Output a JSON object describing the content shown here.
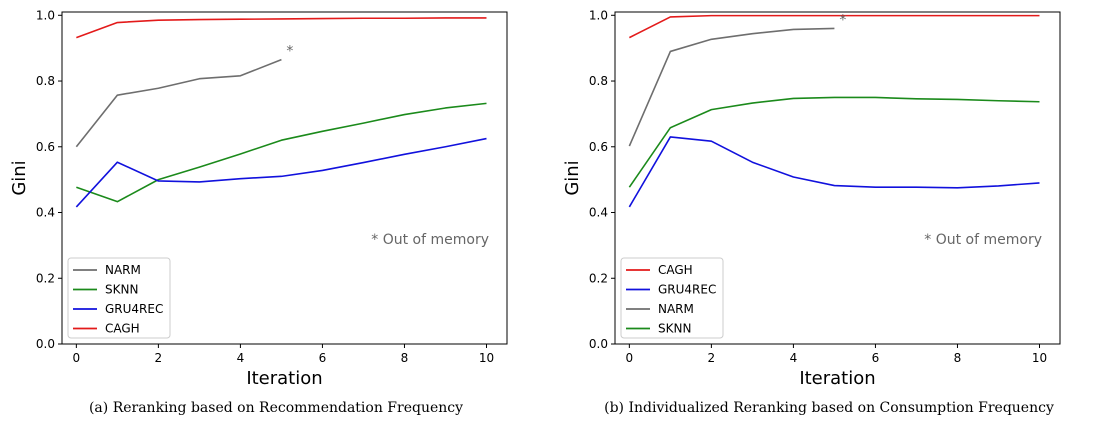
{
  "chart_data": [
    {
      "type": "line",
      "caption": "(a) Reranking based on Recommendation Frequency",
      "xlabel": "Iteration",
      "ylabel": "Gini",
      "xlim": [
        -0.35,
        10.5
      ],
      "ylim": [
        0.0,
        1.01
      ],
      "xticks": [
        0,
        2,
        4,
        6,
        8,
        10
      ],
      "xtick_labels": [
        "0",
        "2",
        "4",
        "6",
        "8",
        "10"
      ],
      "yticks": [
        0.0,
        0.2,
        0.4,
        0.6,
        0.8,
        1.0
      ],
      "ytick_labels": [
        "0.0",
        "0.2",
        "0.4",
        "0.6",
        "0.8",
        "1.0"
      ],
      "grid": false,
      "legend_position": "bottom-left",
      "note": "* Out of memory",
      "marker_label": "*",
      "marker_series": "NARM",
      "series": [
        {
          "name": "NARM",
          "color": "#6e6e6e",
          "x": [
            0,
            1,
            2,
            3,
            4,
            5
          ],
          "values": [
            0.6,
            0.757,
            0.778,
            0.807,
            0.816,
            0.865
          ]
        },
        {
          "name": "SKNN",
          "color": "#1b8a1b",
          "x": [
            0,
            1,
            2,
            3,
            4,
            5,
            6,
            7,
            8,
            9,
            10
          ],
          "values": [
            0.477,
            0.433,
            0.5,
            0.538,
            0.578,
            0.62,
            0.647,
            0.672,
            0.698,
            0.718,
            0.732
          ]
        },
        {
          "name": "GRU4REC",
          "color": "#1111dd",
          "x": [
            0,
            1,
            2,
            3,
            4,
            5,
            6,
            7,
            8,
            9,
            10
          ],
          "values": [
            0.417,
            0.553,
            0.496,
            0.493,
            0.503,
            0.51,
            0.528,
            0.552,
            0.577,
            0.6,
            0.625
          ]
        },
        {
          "name": "CAGH",
          "color": "#e31a1a",
          "x": [
            0,
            1,
            2,
            3,
            4,
            5,
            6,
            7,
            8,
            9,
            10
          ],
          "values": [
            0.932,
            0.978,
            0.985,
            0.987,
            0.988,
            0.989,
            0.99,
            0.991,
            0.991,
            0.992,
            0.992
          ]
        }
      ]
    },
    {
      "type": "line",
      "caption": "(b) Individualized Reranking based on Consumption Frequency",
      "xlabel": "Iteration",
      "ylabel": "Gini",
      "xlim": [
        -0.35,
        10.5
      ],
      "ylim": [
        0.0,
        1.01
      ],
      "xticks": [
        0,
        2,
        4,
        6,
        8,
        10
      ],
      "xtick_labels": [
        "0",
        "2",
        "4",
        "6",
        "8",
        "10"
      ],
      "yticks": [
        0.0,
        0.2,
        0.4,
        0.6,
        0.8,
        1.0
      ],
      "ytick_labels": [
        "0.0",
        "0.2",
        "0.4",
        "0.6",
        "0.8",
        "1.0"
      ],
      "grid": false,
      "legend_position": "bottom-left",
      "note": "* Out of memory",
      "marker_label": "*",
      "marker_series": "NARM",
      "series": [
        {
          "name": "CAGH",
          "color": "#e31a1a",
          "x": [
            0,
            1,
            2,
            3,
            4,
            5,
            6,
            7,
            8,
            9,
            10
          ],
          "values": [
            0.932,
            0.995,
            0.999,
            0.999,
            0.999,
            0.999,
            0.999,
            0.999,
            0.999,
            0.999,
            0.999
          ]
        },
        {
          "name": "GRU4REC",
          "color": "#1111dd",
          "x": [
            0,
            1,
            2,
            3,
            4,
            5,
            6,
            7,
            8,
            9,
            10
          ],
          "values": [
            0.417,
            0.63,
            0.617,
            0.553,
            0.508,
            0.482,
            0.477,
            0.477,
            0.475,
            0.481,
            0.49
          ]
        },
        {
          "name": "NARM",
          "color": "#6e6e6e",
          "x": [
            0,
            1,
            2,
            3,
            4,
            5
          ],
          "values": [
            0.602,
            0.89,
            0.927,
            0.944,
            0.957,
            0.96
          ]
        },
        {
          "name": "SKNN",
          "color": "#1b8a1b",
          "x": [
            0,
            1,
            2,
            3,
            4,
            5,
            6,
            7,
            8,
            9,
            10
          ],
          "values": [
            0.477,
            0.658,
            0.713,
            0.733,
            0.747,
            0.75,
            0.75,
            0.746,
            0.744,
            0.74,
            0.737
          ]
        }
      ]
    }
  ]
}
